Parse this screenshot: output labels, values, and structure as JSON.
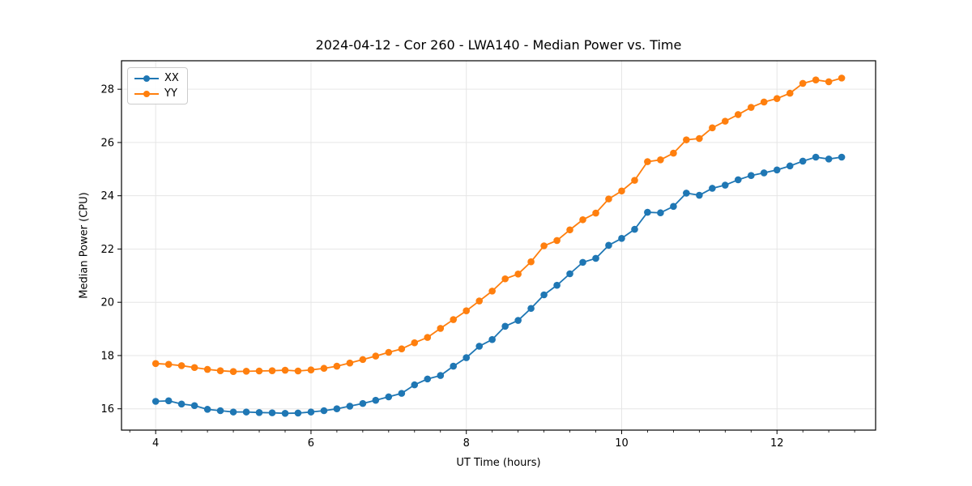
{
  "figure": {
    "title": "2024-04-12 - Cor 260 - LWA140 - Median Power vs. Time"
  },
  "chart_data": {
    "type": "line",
    "title": "2024-04-12 - Cor 260 - LWA140 - Median Power vs. Time",
    "xlabel": "UT Time (hours)",
    "ylabel": "Median Power (CPU)",
    "x": [
      4.0,
      4.167,
      4.333,
      4.5,
      4.667,
      4.833,
      5.0,
      5.167,
      5.333,
      5.5,
      5.667,
      5.833,
      6.0,
      6.167,
      6.333,
      6.5,
      6.667,
      6.833,
      7.0,
      7.167,
      7.333,
      7.5,
      7.667,
      7.833,
      8.0,
      8.167,
      8.333,
      8.5,
      8.667,
      8.833,
      9.0,
      9.167,
      9.333,
      9.5,
      9.667,
      9.833,
      10.0,
      10.167,
      10.333,
      10.5,
      10.667,
      10.833,
      11.0,
      11.167,
      11.333,
      11.5,
      11.667,
      11.833,
      12.0,
      12.167,
      12.333,
      12.5,
      12.667,
      12.833
    ],
    "series": [
      {
        "name": "XX",
        "color": "#1f77b4",
        "values": [
          16.28,
          16.3,
          16.18,
          16.12,
          15.98,
          15.93,
          15.88,
          15.88,
          15.86,
          15.85,
          15.83,
          15.84,
          15.88,
          15.93,
          16.0,
          16.1,
          16.2,
          16.32,
          16.45,
          16.58,
          16.9,
          17.12,
          17.25,
          17.6,
          17.92,
          18.35,
          18.6,
          19.1,
          19.32,
          19.77,
          20.28,
          20.64,
          21.07,
          21.5,
          21.65,
          22.14,
          22.4,
          22.74,
          23.38,
          23.36,
          23.6,
          24.1,
          24.02,
          24.28,
          24.4,
          24.6,
          24.76,
          24.86,
          24.97,
          25.12,
          25.3,
          25.45,
          25.38,
          25.45
        ]
      },
      {
        "name": "YY",
        "color": "#ff7f0e",
        "values": [
          17.7,
          17.67,
          17.62,
          17.55,
          17.48,
          17.43,
          17.4,
          17.41,
          17.42,
          17.43,
          17.45,
          17.42,
          17.46,
          17.52,
          17.6,
          17.72,
          17.85,
          17.98,
          18.12,
          18.25,
          18.48,
          18.68,
          19.02,
          19.35,
          19.68,
          20.05,
          20.42,
          20.88,
          21.06,
          21.52,
          22.12,
          22.32,
          22.72,
          23.1,
          23.35,
          23.88,
          24.18,
          24.58,
          25.28,
          25.35,
          25.6,
          26.1,
          26.15,
          26.55,
          26.8,
          27.05,
          27.32,
          27.52,
          27.65,
          27.85,
          28.22,
          28.35,
          28.28,
          28.42
        ]
      }
    ],
    "xlim": [
      3.56,
      13.27
    ],
    "ylim": [
      15.2,
      29.07
    ],
    "x_major_ticks": [
      4,
      6,
      8,
      10,
      12
    ],
    "x_minor_step": 0.3333333,
    "y_major_ticks": [
      16,
      18,
      20,
      22,
      24,
      26,
      28
    ],
    "grid": true,
    "grid_color": "#e6e6e6",
    "spine_color": "#000000",
    "legend_position": "upper-left",
    "legend_labels": [
      "XX",
      "YY"
    ],
    "marker": "circle"
  }
}
